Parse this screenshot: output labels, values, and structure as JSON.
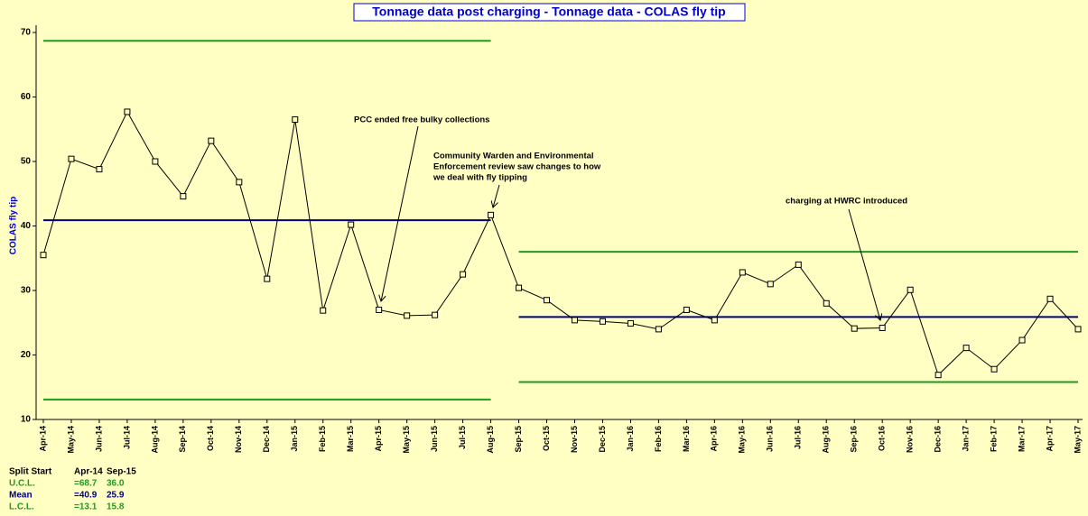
{
  "chart_data": {
    "type": "line",
    "title": "Tonnage data post charging - Tonnage data - COLAS fly tip",
    "y_label": "COLAS fly tip",
    "categories": [
      "Apr-14",
      "May-14",
      "Jun-14",
      "Jul-14",
      "Aug-14",
      "Sep-14",
      "Oct-14",
      "Nov-14",
      "Dec-14",
      "Jan-15",
      "Feb-15",
      "Mar-15",
      "Apr-15",
      "May-15",
      "Jun-15",
      "Jul-15",
      "Aug-15",
      "Sep-15",
      "Oct-15",
      "Nov-15",
      "Dec-15",
      "Jan-16",
      "Feb-16",
      "Mar-16",
      "Apr-16",
      "May-16",
      "Jun-16",
      "Jul-16",
      "Aug-16",
      "Sep-16",
      "Oct-16",
      "Nov-16",
      "Dec-16",
      "Jan-17",
      "Feb-17",
      "Mar-17",
      "Apr-17",
      "May-17"
    ],
    "series": [
      {
        "name": "COLAS fly tip",
        "color": "#000000",
        "values": [
          35.5,
          50.4,
          48.8,
          57.7,
          50.0,
          44.6,
          53.2,
          46.8,
          31.8,
          56.5,
          26.9,
          40.2,
          27.0,
          26.1,
          26.2,
          32.5,
          41.7,
          30.4,
          28.5,
          25.4,
          25.2,
          24.9,
          24.0,
          27.0,
          25.4,
          32.8,
          31.0,
          34.0,
          28.0,
          24.1,
          24.2,
          30.1,
          16.9,
          21.1,
          17.8,
          22.3,
          28.7,
          24.0
        ]
      }
    ],
    "ylim": [
      10,
      70
    ],
    "yticks": [
      10,
      20,
      30,
      40,
      50,
      60,
      70
    ],
    "limit_colors": {
      "ucl": "#1f9a1f",
      "mean": "#000080",
      "lcl": "#1f9a1f"
    },
    "limits_header": "Split Start",
    "limit_names": {
      "ucl": "U.C.L.",
      "mean": "Mean",
      "lcl": "L.C.L."
    },
    "splits": [
      {
        "start": "Apr-14",
        "ucl": 68.7,
        "mean": 40.9,
        "lcl": 13.1,
        "value_labels": {
          "ucl": "=68.7",
          "mean": "=40.9",
          "lcl": "=13.1"
        }
      },
      {
        "start": "Sep-15",
        "ucl": 36.0,
        "mean": 25.9,
        "lcl": 15.8,
        "value_labels": {
          "ucl": "36.0",
          "mean": "25.9",
          "lcl": "15.8"
        }
      }
    ],
    "annotations": [
      {
        "lines": [
          "PCC ended free bulky collections"
        ]
      },
      {
        "lines": [
          "Community Warden and Environmental",
          "Enforcement review saw changes to how",
          "we deal with fly tipping"
        ]
      },
      {
        "lines": [
          "charging at HWRC introduced"
        ]
      }
    ]
  }
}
